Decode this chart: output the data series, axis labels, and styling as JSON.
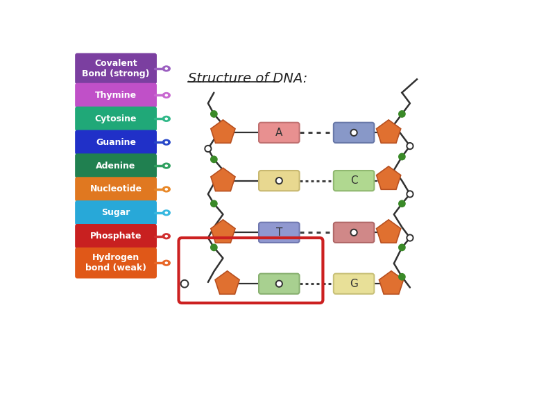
{
  "legend_items": [
    {
      "label": "Covalent\nBond (strong)",
      "color": "#7B3FA0",
      "dot_color": "#9B5FC0",
      "two_line": true
    },
    {
      "label": "Thymine",
      "color": "#C050C8",
      "dot_color": "#C868D0",
      "two_line": false
    },
    {
      "label": "Cytosine",
      "color": "#20A878",
      "dot_color": "#30B888",
      "two_line": false
    },
    {
      "label": "Guanine",
      "color": "#2030C8",
      "dot_color": "#2848C8",
      "two_line": false
    },
    {
      "label": "Adenine",
      "color": "#208050",
      "dot_color": "#30A060",
      "two_line": false
    },
    {
      "label": "Nucleotide",
      "color": "#E07820",
      "dot_color": "#E88828",
      "two_line": false
    },
    {
      "label": "Sugar",
      "color": "#28A8D8",
      "dot_color": "#38B8E0",
      "two_line": false
    },
    {
      "label": "Phosphate",
      "color": "#C82020",
      "dot_color": "#D03030",
      "two_line": false
    },
    {
      "label": "Hydrogen\nbond (weak)",
      "color": "#E05818",
      "dot_color": "#E86828",
      "two_line": true
    }
  ],
  "title": "Structure of DNA:",
  "bg": "#ffffff",
  "pentagon_color": "#E07030",
  "pentagon_edge": "#B85020",
  "green_dot": "#3A8A28",
  "backbone_color": "#303030",
  "base_pairs": [
    {
      "left_label": "A",
      "left_color": "#E89090",
      "left_edge": "#C07070",
      "right_label": "o",
      "right_color": "#8898C8",
      "right_edge": "#6878A8",
      "dashes": 4
    },
    {
      "left_label": "o",
      "left_color": "#E8D890",
      "left_edge": "#C8B870",
      "right_label": "C",
      "right_color": "#B0D890",
      "right_edge": "#90B870",
      "dashes": 6
    },
    {
      "left_label": "T",
      "left_color": "#9098D0",
      "left_edge": "#7078B0",
      "right_label": "o",
      "right_color": "#D08888",
      "right_edge": "#B06868",
      "dashes": 4
    },
    {
      "left_label": "o",
      "left_color": "#A8D090",
      "left_edge": "#88B070",
      "right_label": "G",
      "right_color": "#E8E098",
      "right_edge": "#C8C078",
      "dashes": 6
    }
  ]
}
